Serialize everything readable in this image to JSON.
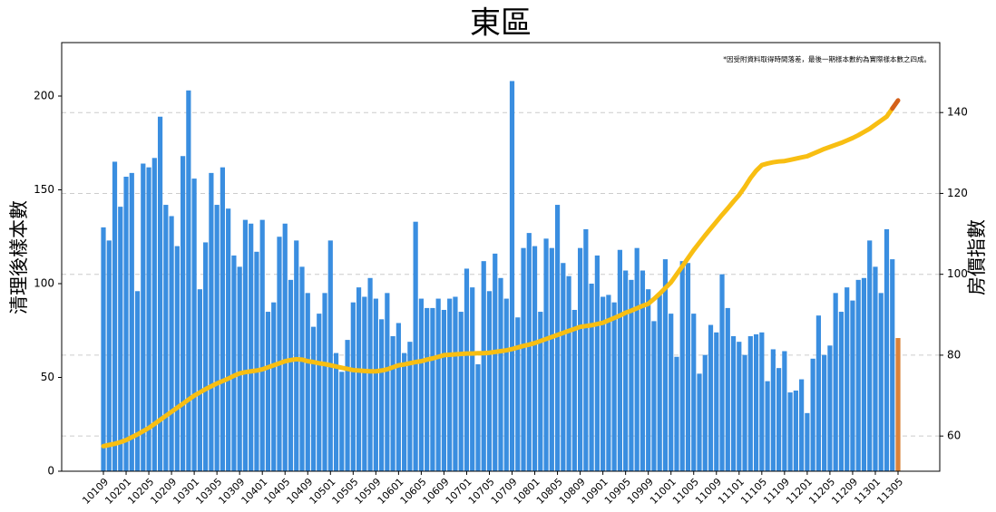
{
  "chart_data": {
    "type": "bar",
    "title": "東區",
    "annotation": "*因受附資料取得時間落差，最後一期樣本數約為實際樣本數之四成。",
    "ylabel": "清理後樣本數",
    "y2label": "房價指數",
    "categories": [
      "10109",
      null,
      null,
      null,
      "10201",
      null,
      null,
      null,
      "10205",
      null,
      null,
      null,
      "10209",
      null,
      null,
      null,
      "10301",
      null,
      null,
      null,
      "10305",
      null,
      null,
      null,
      "10309",
      null,
      null,
      null,
      "10401",
      null,
      null,
      null,
      "10405",
      null,
      null,
      null,
      "10409",
      null,
      null,
      null,
      "10501",
      null,
      null,
      null,
      "10505",
      null,
      null,
      null,
      "10509",
      null,
      null,
      null,
      "10601",
      null,
      null,
      null,
      "10605",
      null,
      null,
      null,
      "10609",
      null,
      null,
      null,
      "10701",
      null,
      null,
      null,
      "10705",
      null,
      null,
      null,
      "10709",
      null,
      null,
      null,
      "10801",
      null,
      null,
      null,
      "10805",
      null,
      null,
      null,
      "10809",
      null,
      null,
      null,
      "10901",
      null,
      null,
      null,
      "10905",
      null,
      null,
      null,
      "10909",
      null,
      null,
      null,
      "11001",
      null,
      null,
      null,
      "11005",
      null,
      null,
      null,
      "11009",
      null,
      null,
      null,
      "11101",
      null,
      null,
      null,
      "11105",
      null,
      null,
      null,
      "11109",
      null,
      null,
      null,
      "11201",
      null,
      null,
      null,
      "11205",
      null,
      null,
      null,
      "11209",
      null,
      null,
      null,
      "11301",
      null,
      null,
      null,
      "11305"
    ],
    "series": [
      {
        "type": "bar",
        "color": "#3a8ee0",
        "last_color": "#d9823a",
        "values": [
          130,
          123,
          165,
          141,
          157,
          159,
          96,
          164,
          162,
          167,
          189,
          142,
          136,
          120,
          168,
          203,
          156,
          97,
          122,
          159,
          142,
          162,
          140,
          115,
          109,
          134,
          132,
          117,
          134,
          85,
          90,
          125,
          132,
          102,
          123,
          109,
          95,
          77,
          84,
          95,
          123,
          63,
          53,
          70,
          90,
          98,
          93,
          103,
          92,
          81,
          95,
          72,
          79,
          63,
          69,
          133,
          92,
          87,
          87,
          92,
          86,
          92,
          93,
          85,
          108,
          98,
          57,
          112,
          96,
          116,
          103,
          92,
          208,
          82,
          119,
          127,
          120,
          85,
          124,
          119,
          142,
          111,
          104,
          86,
          119,
          129,
          100,
          115,
          93,
          94,
          90,
          118,
          107,
          102,
          119,
          107,
          97,
          80,
          94,
          113,
          84,
          61,
          112,
          111,
          84,
          52,
          62,
          78,
          74,
          105,
          87,
          72,
          69,
          62,
          72,
          73,
          74,
          48,
          65,
          55,
          64,
          42,
          43,
          49,
          31,
          60,
          83,
          62,
          67,
          95,
          85,
          98,
          91,
          102,
          103,
          123,
          109,
          95,
          129,
          113,
          71
        ]
      },
      {
        "type": "line",
        "axis": "y2",
        "color": "#f8be12",
        "last_color": "#d4601a",
        "values": [
          57.5,
          57.8,
          58.1,
          58.5,
          59,
          59.7,
          60.4,
          61.2,
          62,
          63,
          64,
          65,
          66,
          67,
          68,
          69,
          70,
          70.8,
          71.6,
          72.3,
          73,
          73.6,
          74.2,
          74.9,
          75.5,
          75.8,
          76,
          76.2,
          76.5,
          77,
          77.5,
          78,
          78.5,
          78.8,
          79,
          78.9,
          78.5,
          78.3,
          78,
          77.8,
          77.5,
          77.2,
          76.9,
          76.6,
          76.3,
          76.2,
          76.1,
          76,
          76,
          76.2,
          76.5,
          77,
          77.5,
          77.7,
          78,
          78.3,
          78.5,
          78.9,
          79.2,
          79.6,
          80,
          80.1,
          80.2,
          80.3,
          80.4,
          80.4,
          80.5,
          80.5,
          80.6,
          80.8,
          81,
          81.2,
          81.5,
          81.9,
          82.3,
          82.6,
          83,
          83.5,
          84,
          84.5,
          85,
          85.5,
          86,
          86.5,
          87,
          87.2,
          87.4,
          87.7,
          88,
          88.6,
          89.2,
          89.8,
          90.5,
          91,
          91.6,
          92.2,
          92.7,
          93.9,
          95.2,
          96.6,
          98,
          100,
          102,
          104,
          106,
          107.8,
          109.6,
          111.3,
          113,
          114.7,
          116.3,
          118,
          119.6,
          121.6,
          123.8,
          125.6,
          127,
          127.4,
          127.7,
          127.9,
          128,
          128.3,
          128.6,
          128.9,
          129.2,
          129.8,
          130.4,
          131,
          131.5,
          132,
          132.5,
          133.1,
          133.7,
          134.4,
          135.2,
          136,
          137,
          138,
          139,
          141,
          143
        ]
      }
    ],
    "ylim": [
      0,
      228.5
    ],
    "yticks": [
      0,
      50,
      100,
      150,
      200
    ],
    "y2lim": [
      51.3,
      157.3
    ],
    "y2ticks": [
      60,
      80,
      100,
      120,
      140
    ],
    "grid": true
  }
}
